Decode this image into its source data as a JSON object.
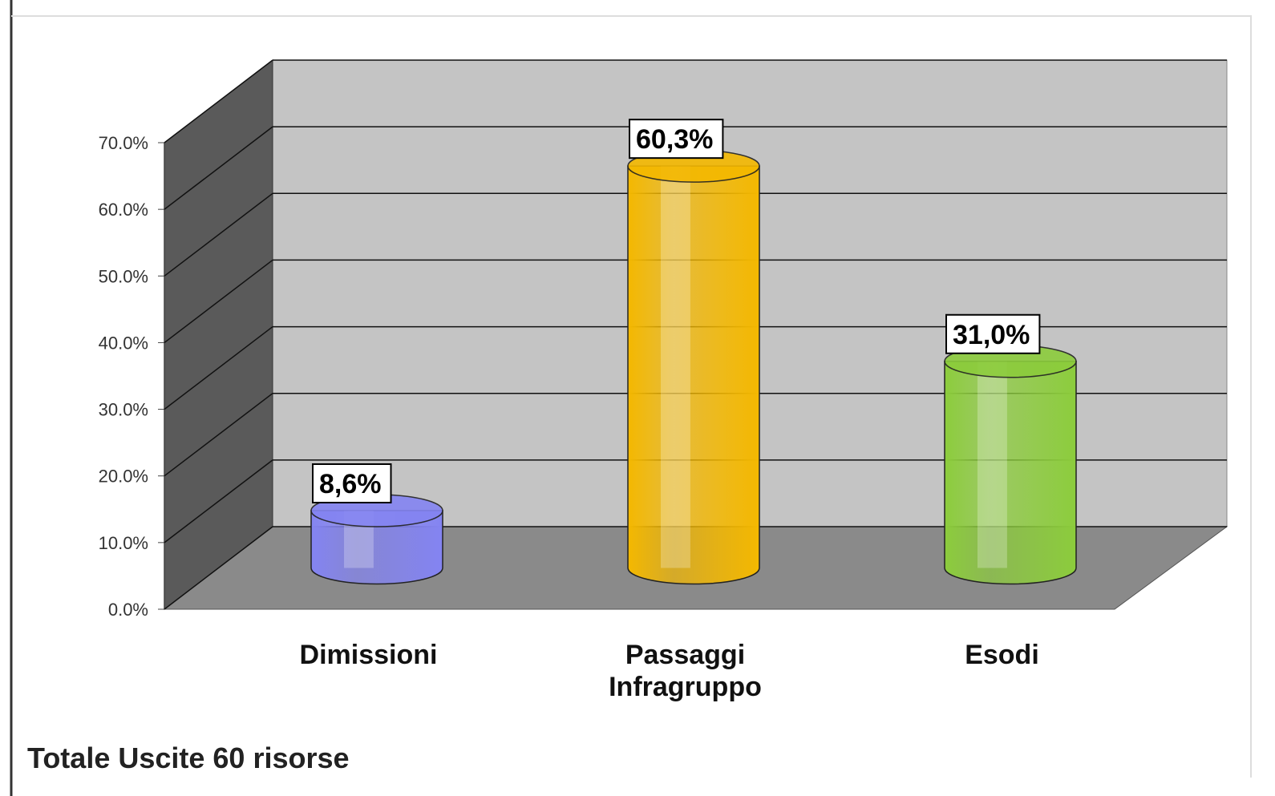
{
  "chart_data": {
    "type": "bar3d",
    "title": "Totale Uscite 60 risorse",
    "categories": [
      "Dimissioni",
      "Passaggi Infragruppo",
      "Esodi"
    ],
    "values": [
      8.6,
      60.3,
      31.0
    ],
    "value_labels": [
      "8,6%",
      "60,3%",
      "31,0%"
    ],
    "colors": [
      "#8484f2",
      "#f4b800",
      "#8ccc3c"
    ],
    "ylim": [
      0,
      70
    ],
    "yticks": [
      {
        "value": 0,
        "label": "0.0%"
      },
      {
        "value": 10,
        "label": "10.0%"
      },
      {
        "value": 20,
        "label": "20.0%"
      },
      {
        "value": 30,
        "label": "30.0%"
      },
      {
        "value": 40,
        "label": "40.0%"
      },
      {
        "value": 50,
        "label": "50.0%"
      },
      {
        "value": 60,
        "label": "60.0%"
      },
      {
        "value": 70,
        "label": "70.0%"
      }
    ],
    "grid": true
  }
}
